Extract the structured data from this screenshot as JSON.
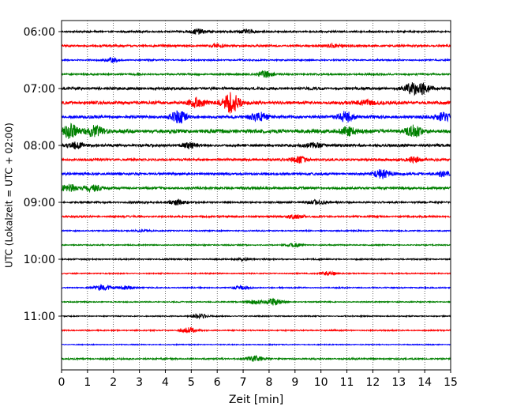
{
  "chart_data": {
    "type": "line",
    "title": "",
    "xlabel": "Zeit  [min]",
    "ylabel": "UTC (Lokalzeit = UTC + 02:00)",
    "xlim": [
      0,
      15
    ],
    "x_ticks": [
      0,
      1,
      2,
      3,
      4,
      5,
      6,
      7,
      8,
      9,
      10,
      11,
      12,
      13,
      14,
      15
    ],
    "x_tick_labels": [
      "0",
      "1",
      "2",
      "3",
      "4",
      "5",
      "6",
      "7",
      "8",
      "9",
      "10",
      "11",
      "12",
      "13",
      "14",
      "15"
    ],
    "y_tick_labels": [
      "06:00",
      "07:00",
      "08:00",
      "09:00",
      "10:00",
      "11:00"
    ],
    "grid": "vertical-dotted",
    "legend": "none",
    "series": [
      {
        "start": "06:00",
        "color": "#000000",
        "amplitude": 0.3,
        "bursts": [
          {
            "x": 5.3,
            "amp": 0.9
          },
          {
            "x": 7.2,
            "amp": 0.7
          }
        ]
      },
      {
        "start": "06:15",
        "color": "#ff0000",
        "amplitude": 0.35,
        "bursts": [
          {
            "x": 10.5,
            "amp": 0.8
          },
          {
            "x": 6.0,
            "amp": 0.5
          }
        ]
      },
      {
        "start": "06:30",
        "color": "#0000ff",
        "amplitude": 0.25,
        "bursts": [
          {
            "x": 2.0,
            "amp": 0.6
          }
        ]
      },
      {
        "start": "06:45",
        "color": "#008000",
        "amplitude": 0.3,
        "bursts": [
          {
            "x": 7.8,
            "amp": 1.2
          }
        ]
      },
      {
        "start": "07:00",
        "color": "#000000",
        "amplitude": 0.45,
        "bursts": [
          {
            "x": 13.5,
            "amp": 1.6
          },
          {
            "x": 14.0,
            "amp": 1.8
          }
        ]
      },
      {
        "start": "07:15",
        "color": "#ff0000",
        "amplitude": 0.55,
        "bursts": [
          {
            "x": 6.5,
            "amp": 4.0
          },
          {
            "x": 5.2,
            "amp": 1.5
          },
          {
            "x": 11.8,
            "amp": 1.0
          }
        ]
      },
      {
        "start": "07:30",
        "color": "#0000ff",
        "amplitude": 0.5,
        "bursts": [
          {
            "x": 4.5,
            "amp": 1.8
          },
          {
            "x": 7.6,
            "amp": 2.0
          },
          {
            "x": 11.0,
            "amp": 2.2
          },
          {
            "x": 14.8,
            "amp": 1.8
          }
        ]
      },
      {
        "start": "07:45",
        "color": "#008000",
        "amplitude": 0.65,
        "bursts": [
          {
            "x": 0.3,
            "amp": 2.0
          },
          {
            "x": 1.3,
            "amp": 2.2
          },
          {
            "x": 11.0,
            "amp": 1.5
          },
          {
            "x": 13.6,
            "amp": 1.6
          }
        ]
      },
      {
        "start": "08:00",
        "color": "#000000",
        "amplitude": 0.45,
        "bursts": [
          {
            "x": 0.6,
            "amp": 1.2
          },
          {
            "x": 9.8,
            "amp": 1.0
          },
          {
            "x": 4.9,
            "amp": 0.8
          }
        ]
      },
      {
        "start": "08:15",
        "color": "#ff0000",
        "amplitude": 0.4,
        "bursts": [
          {
            "x": 9.2,
            "amp": 1.1
          },
          {
            "x": 13.5,
            "amp": 0.9
          }
        ]
      },
      {
        "start": "08:30",
        "color": "#0000ff",
        "amplitude": 0.4,
        "bursts": [
          {
            "x": 12.4,
            "amp": 1.8
          },
          {
            "x": 14.7,
            "amp": 1.0
          }
        ]
      },
      {
        "start": "08:45",
        "color": "#008000",
        "amplitude": 0.4,
        "bursts": [
          {
            "x": 1.2,
            "amp": 1.3
          },
          {
            "x": 0.3,
            "amp": 1.2
          }
        ]
      },
      {
        "start": "09:00",
        "color": "#000000",
        "amplitude": 0.3,
        "bursts": [
          {
            "x": 4.4,
            "amp": 0.9
          },
          {
            "x": 9.8,
            "amp": 0.9
          }
        ]
      },
      {
        "start": "09:15",
        "color": "#ff0000",
        "amplitude": 0.3,
        "bursts": [
          {
            "x": 9.0,
            "amp": 0.9
          }
        ]
      },
      {
        "start": "09:30",
        "color": "#0000ff",
        "amplitude": 0.2,
        "bursts": [
          {
            "x": 3.0,
            "amp": 0.4
          }
        ]
      },
      {
        "start": "09:45",
        "color": "#008000",
        "amplitude": 0.2,
        "bursts": [
          {
            "x": 9.0,
            "amp": 0.5
          }
        ]
      },
      {
        "start": "10:00",
        "color": "#000000",
        "amplitude": 0.22,
        "bursts": [
          {
            "x": 7.0,
            "amp": 0.4
          }
        ]
      },
      {
        "start": "10:15",
        "color": "#ff0000",
        "amplitude": 0.18,
        "bursts": [
          {
            "x": 10.3,
            "amp": 0.9
          }
        ]
      },
      {
        "start": "10:30",
        "color": "#0000ff",
        "amplitude": 0.2,
        "bursts": [
          {
            "x": 1.6,
            "amp": 1.0
          },
          {
            "x": 2.4,
            "amp": 0.8
          },
          {
            "x": 6.9,
            "amp": 0.6
          }
        ]
      },
      {
        "start": "10:45",
        "color": "#008000",
        "amplitude": 0.18,
        "bursts": [
          {
            "x": 7.4,
            "amp": 1.0
          },
          {
            "x": 8.2,
            "amp": 1.1
          }
        ]
      },
      {
        "start": "11:00",
        "color": "#000000",
        "amplitude": 0.18,
        "bursts": [
          {
            "x": 5.3,
            "amp": 0.8
          }
        ]
      },
      {
        "start": "11:15",
        "color": "#ff0000",
        "amplitude": 0.2,
        "bursts": [
          {
            "x": 4.9,
            "amp": 0.9
          }
        ]
      },
      {
        "start": "11:30",
        "color": "#0000ff",
        "amplitude": 0.15,
        "bursts": []
      },
      {
        "start": "11:45",
        "color": "#008000",
        "amplitude": 0.25,
        "bursts": [
          {
            "x": 7.4,
            "amp": 0.9
          }
        ]
      }
    ]
  }
}
